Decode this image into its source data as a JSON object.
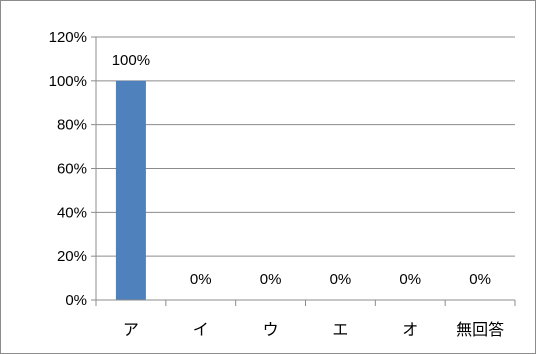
{
  "chart_data": {
    "type": "bar",
    "categories": [
      "ア",
      "イ",
      "ウ",
      "エ",
      "オ",
      "無回答"
    ],
    "values": [
      100,
      0,
      0,
      0,
      0,
      0
    ],
    "data_labels": [
      "100%",
      "0%",
      "0%",
      "0%",
      "0%",
      "0%"
    ],
    "y_ticks": [
      "0%",
      "20%",
      "40%",
      "60%",
      "80%",
      "100%",
      "120%"
    ],
    "y_tick_values": [
      0,
      20,
      40,
      60,
      80,
      100,
      120
    ],
    "ylim": [
      0,
      120
    ],
    "grid": true,
    "legend": "none",
    "bar_color": "#4f81bd",
    "title": "",
    "xlabel": "",
    "ylabel": ""
  }
}
